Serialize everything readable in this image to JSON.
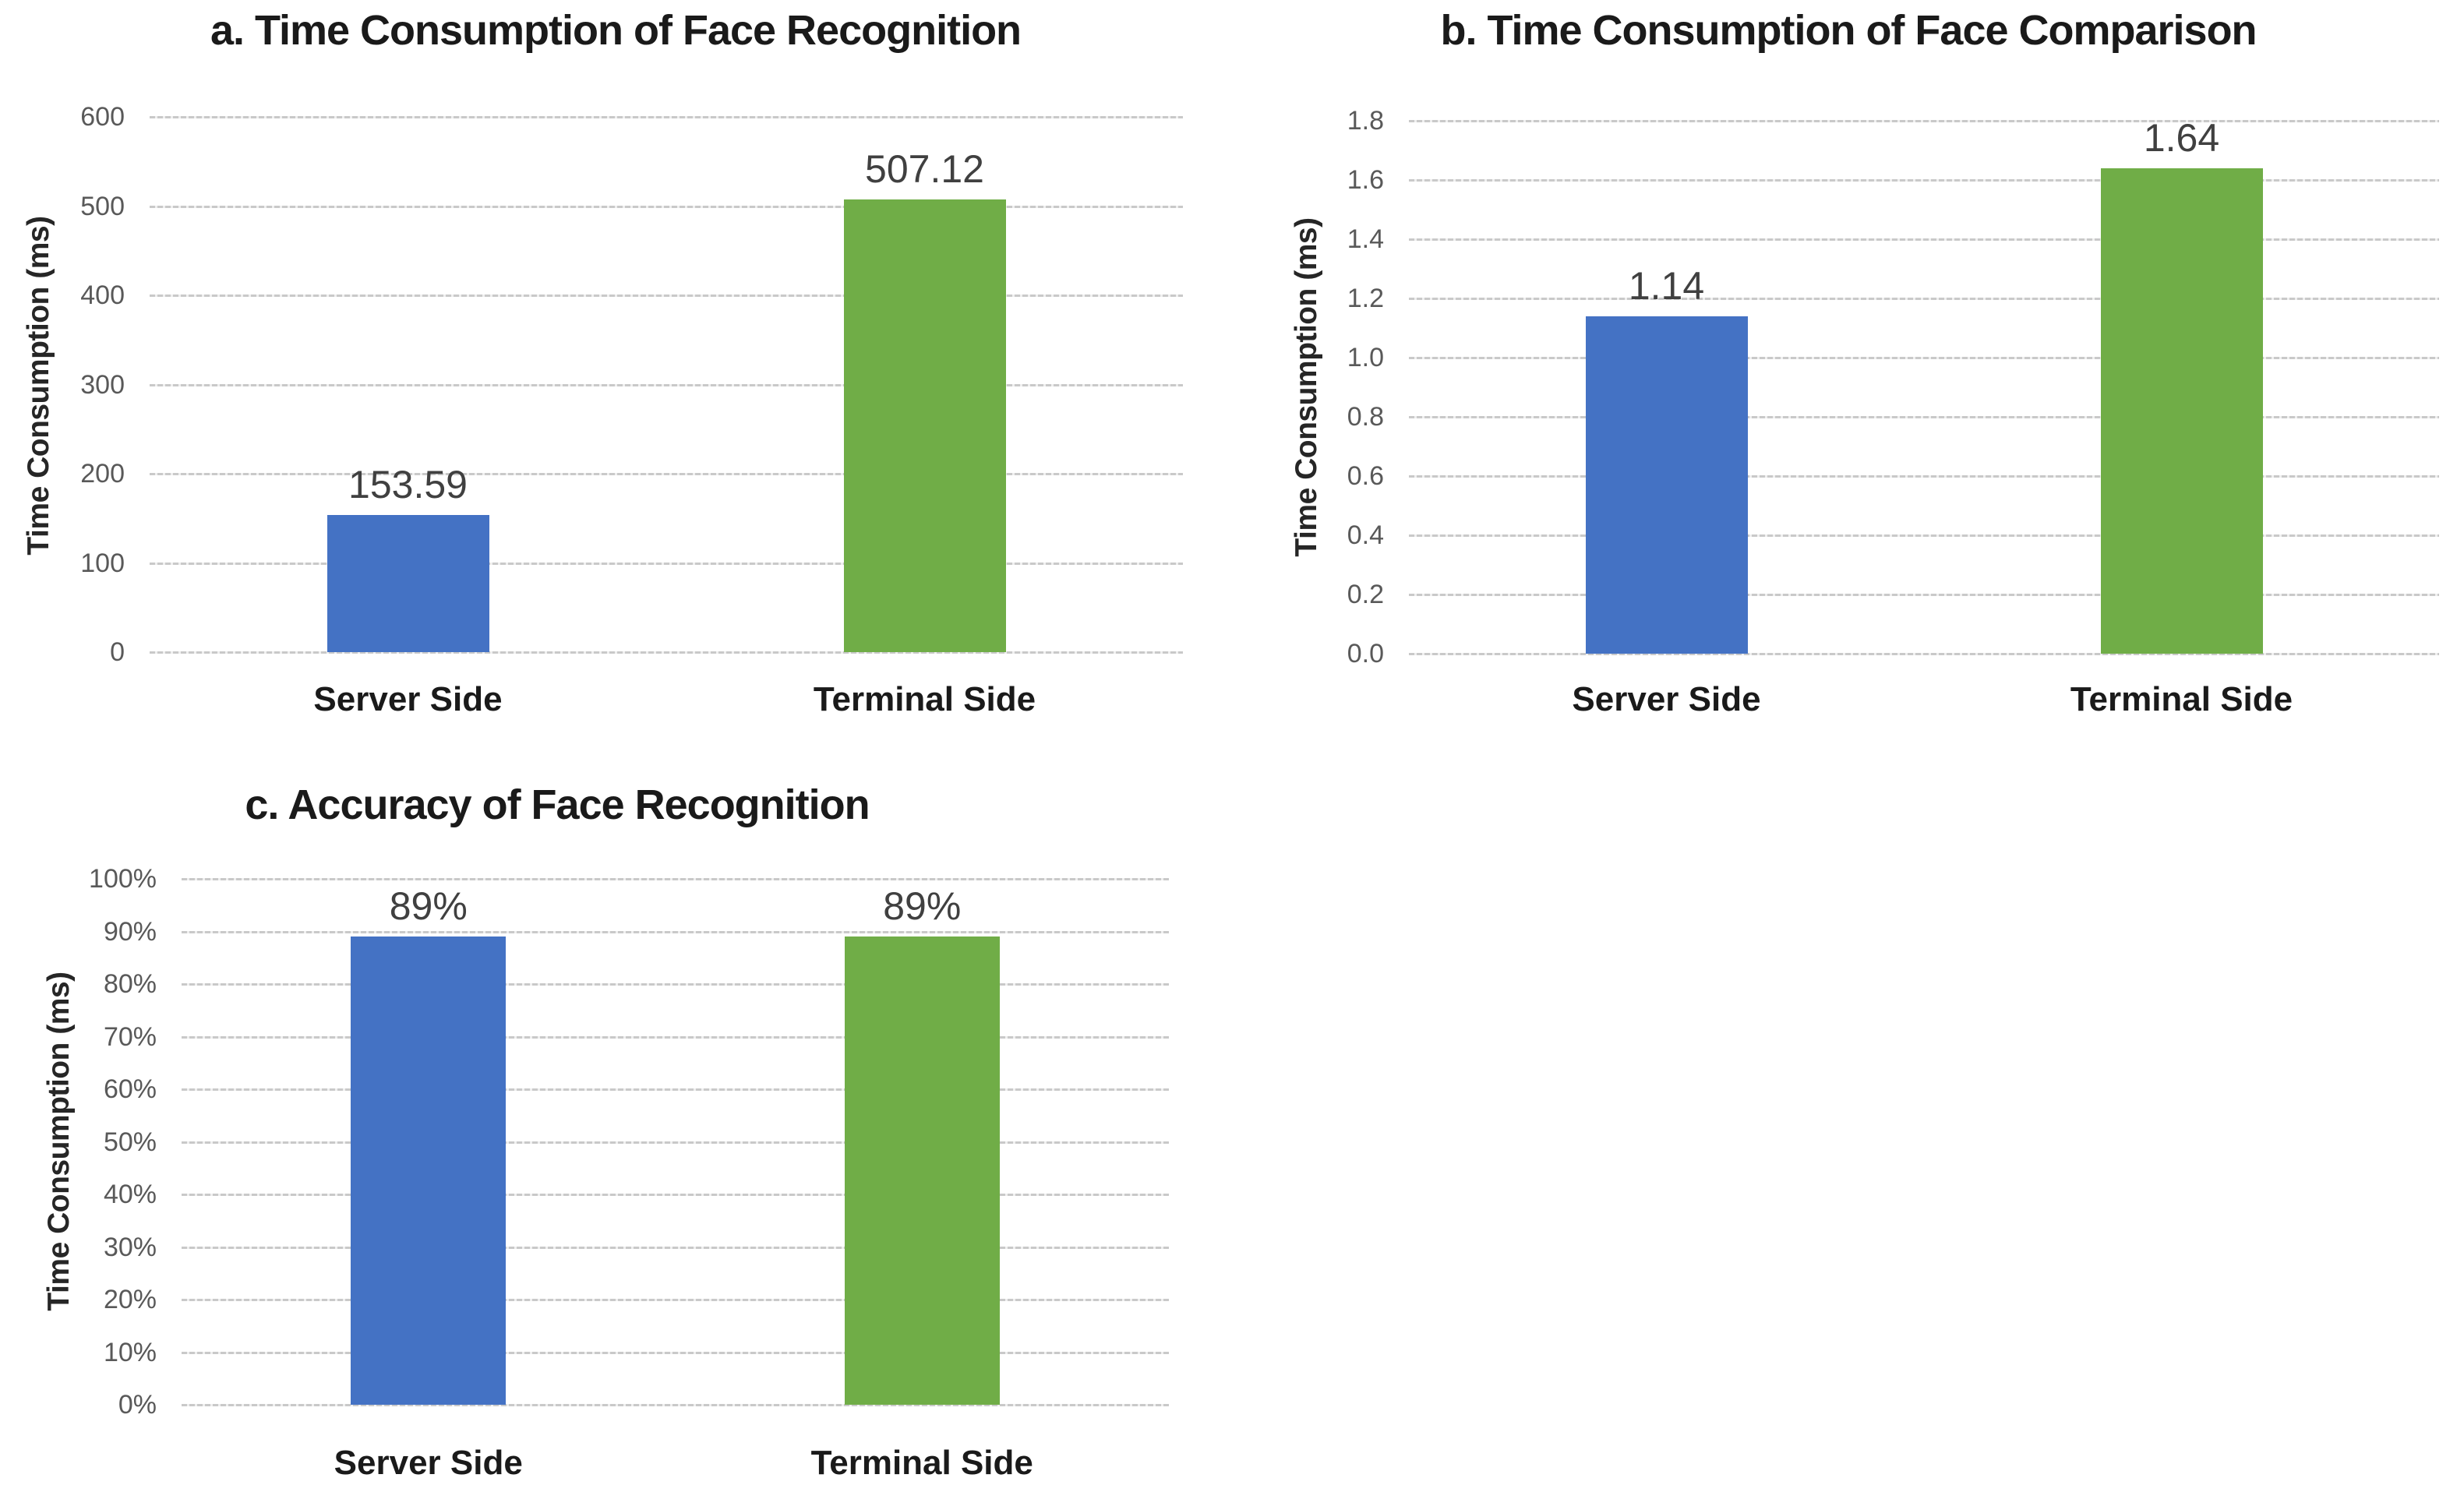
{
  "page": {
    "background": "#ffffff"
  },
  "colors": {
    "server_bar": "#4472c4",
    "terminal_bar": "#70ad47",
    "gridline": "#c9c9c9",
    "tick_text": "#595959",
    "value_label_text": "#404040",
    "title_text": "#1a1a1a",
    "category_text": "#1a1a1a"
  },
  "chart_data": [
    {
      "id": "a",
      "type": "bar",
      "title": "a. Time Consumption of Face Recognition",
      "xlabel": "",
      "ylabel": "Time Consumption (ms)",
      "categories": [
        "Server Side",
        "Terminal Side"
      ],
      "values": [
        153.59,
        507.12
      ],
      "value_labels": [
        "153.59",
        "507.12"
      ],
      "bar_colors": [
        "#4472c4",
        "#70ad47"
      ],
      "ymin": 0,
      "ymax": 600,
      "ytick_labels": [
        "600",
        "500",
        "400",
        "300",
        "200",
        "100",
        "0"
      ],
      "grid": true,
      "legend": false
    },
    {
      "id": "b",
      "type": "bar",
      "title": "b. Time Consumption of Face Comparison",
      "xlabel": "",
      "ylabel": "Time Consumption (ms)",
      "categories": [
        "Server Side",
        "Terminal Side"
      ],
      "values": [
        1.14,
        1.64
      ],
      "value_labels": [
        "1.14",
        "1.64"
      ],
      "bar_colors": [
        "#4472c4",
        "#70ad47"
      ],
      "ymin": 0,
      "ymax": 1.8,
      "ytick_labels": [
        "1.8",
        "1.6",
        "1.4",
        "1.2",
        "1.0",
        "0.8",
        "0.6",
        "0.4",
        "0.2",
        "0.0"
      ],
      "grid": true,
      "legend": false
    },
    {
      "id": "c",
      "type": "bar",
      "title": "c. Accuracy of Face Recognition",
      "xlabel": "",
      "ylabel": "Time Consumption (ms)",
      "categories": [
        "Server Side",
        "Terminal Side"
      ],
      "values": [
        89,
        89
      ],
      "value_labels": [
        "89%",
        "89%"
      ],
      "bar_colors": [
        "#4472c4",
        "#70ad47"
      ],
      "ymin": 0,
      "ymax": 100,
      "ytick_labels": [
        "100%",
        "90%",
        "80%",
        "70%",
        "60%",
        "50%",
        "40%",
        "30%",
        "20%",
        "10%",
        "0%"
      ],
      "grid": true,
      "legend": false
    }
  ]
}
